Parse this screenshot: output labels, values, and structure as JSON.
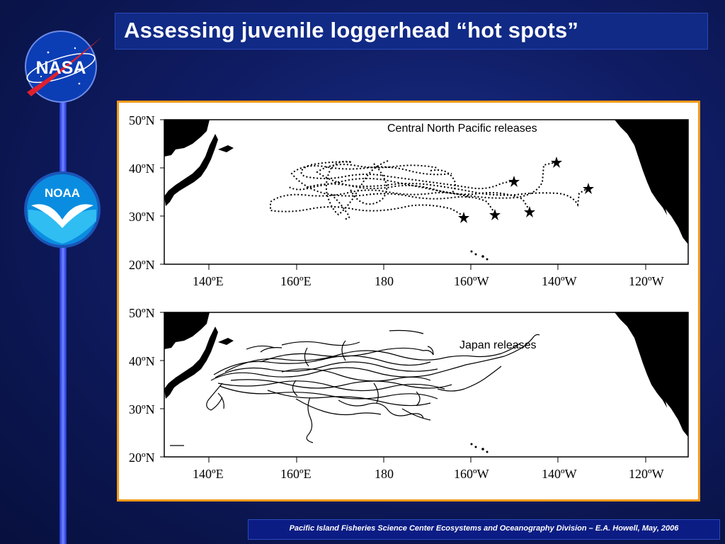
{
  "slide": {
    "title": "Assessing juvenile loggerhead “hot spots”",
    "footer": "Pacific Island Fisheries Science Center Ecosystems and Oceanography Division – E.A. Howell, May, 2006"
  },
  "logos": {
    "nasa_text": "NASA",
    "noaa_text": "NOAA"
  },
  "maps": {
    "top": {
      "label": "Central North Pacific releases",
      "lat_labels": [
        "50ºN",
        "40ºN",
        "30ºN",
        "20ºN"
      ],
      "lon_labels": [
        "140ºE",
        "160ºE",
        "180",
        "160ºW",
        "140ºW",
        "120ºW"
      ]
    },
    "bottom": {
      "label": "Japan releases",
      "lat_labels": [
        "50ºN",
        "40ºN",
        "30ºN",
        "20ºN"
      ],
      "lon_labels": [
        "140ºE",
        "160ºE",
        "180",
        "160ºW",
        "140ºW",
        "120ºW"
      ]
    }
  },
  "colors": {
    "panel_border": "#f29a16",
    "title_bg": "#102a86",
    "footer_bg": "#0b1c84"
  }
}
